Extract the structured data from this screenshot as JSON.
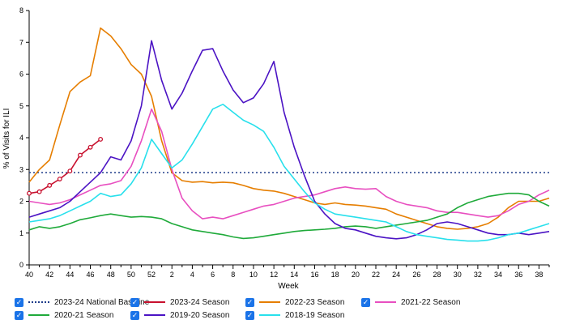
{
  "chart_data": {
    "type": "line",
    "xlabel": "Week",
    "ylabel": "% of Visits for ILI",
    "ylim": [
      0,
      8
    ],
    "yticks": [
      "0",
      "1",
      "2",
      "3",
      "4",
      "5",
      "6",
      "7",
      "8"
    ],
    "x_tick_labels": [
      "40",
      "42",
      "44",
      "46",
      "48",
      "50",
      "52",
      "2",
      "4",
      "6",
      "8",
      "10",
      "12",
      "14",
      "16",
      "18",
      "20",
      "22",
      "24",
      "26",
      "28",
      "30",
      "32",
      "34",
      "36",
      "38"
    ],
    "weeks": [
      40,
      41,
      42,
      43,
      44,
      45,
      46,
      47,
      48,
      49,
      50,
      51,
      52,
      1,
      2,
      3,
      4,
      5,
      6,
      7,
      8,
      9,
      10,
      11,
      12,
      13,
      14,
      15,
      16,
      17,
      18,
      19,
      20,
      21,
      22,
      23,
      24,
      25,
      26,
      27,
      28,
      29,
      30,
      31,
      32,
      33,
      34,
      35,
      36,
      37,
      38,
      39
    ],
    "baseline": {
      "name": "2023-24 National Baseline",
      "value": 2.9,
      "color": "#1f3d8a"
    },
    "series": [
      {
        "name": "2023-24 Season",
        "color": "#c8102e",
        "markers": true,
        "values": [
          2.25,
          2.3,
          2.5,
          2.7,
          2.95,
          3.45,
          3.7,
          3.95
        ]
      },
      {
        "name": "2022-23 Season",
        "color": "#e67e00",
        "values": [
          2.6,
          3.0,
          3.3,
          4.4,
          5.45,
          5.75,
          5.95,
          7.45,
          7.2,
          6.8,
          6.3,
          6.0,
          5.3,
          3.9,
          2.9,
          2.65,
          2.6,
          2.62,
          2.58,
          2.6,
          2.58,
          2.5,
          2.4,
          2.35,
          2.32,
          2.25,
          2.15,
          2.05,
          1.95,
          1.9,
          1.95,
          1.9,
          1.88,
          1.85,
          1.8,
          1.75,
          1.6,
          1.5,
          1.4,
          1.3,
          1.2,
          1.15,
          1.12,
          1.15,
          1.2,
          1.3,
          1.5,
          1.8,
          2.0,
          2.0,
          2.0,
          2.1
        ]
      },
      {
        "name": "2021-22 Season",
        "color": "#e84fc0",
        "values": [
          2.0,
          1.95,
          1.9,
          1.95,
          2.05,
          2.2,
          2.35,
          2.5,
          2.55,
          2.65,
          3.1,
          3.9,
          4.9,
          4.2,
          3.0,
          2.1,
          1.7,
          1.45,
          1.5,
          1.45,
          1.55,
          1.65,
          1.75,
          1.85,
          1.9,
          2.0,
          2.1,
          2.15,
          2.2,
          2.3,
          2.4,
          2.45,
          2.4,
          2.38,
          2.4,
          2.15,
          2.0,
          1.9,
          1.85,
          1.8,
          1.7,
          1.65,
          1.65,
          1.6,
          1.55,
          1.5,
          1.55,
          1.7,
          1.9,
          2.0,
          2.2,
          2.35
        ]
      },
      {
        "name": "2020-21 Season",
        "color": "#1faa3a",
        "values": [
          1.1,
          1.2,
          1.15,
          1.2,
          1.3,
          1.42,
          1.48,
          1.55,
          1.6,
          1.55,
          1.5,
          1.52,
          1.5,
          1.45,
          1.3,
          1.2,
          1.1,
          1.05,
          1.0,
          0.95,
          0.88,
          0.83,
          0.85,
          0.9,
          0.95,
          1.0,
          1.05,
          1.08,
          1.1,
          1.12,
          1.15,
          1.2,
          1.22,
          1.2,
          1.15,
          1.2,
          1.25,
          1.3,
          1.35,
          1.4,
          1.5,
          1.6,
          1.8,
          1.95,
          2.05,
          2.15,
          2.2,
          2.25,
          2.25,
          2.2,
          2.0,
          1.85
        ]
      },
      {
        "name": "2019-20 Season",
        "color": "#4b13c4",
        "values": [
          1.5,
          1.6,
          1.7,
          1.8,
          2.0,
          2.3,
          2.6,
          2.9,
          3.4,
          3.3,
          3.9,
          5.0,
          7.05,
          5.8,
          4.9,
          5.4,
          6.1,
          6.75,
          6.8,
          6.1,
          5.5,
          5.1,
          5.25,
          5.7,
          6.4,
          4.8,
          3.7,
          2.8,
          2.0,
          1.6,
          1.3,
          1.15,
          1.1,
          1.0,
          0.9,
          0.85,
          0.82,
          0.85,
          0.95,
          1.1,
          1.3,
          1.35,
          1.3,
          1.2,
          1.1,
          1.0,
          0.95,
          0.95,
          1.0,
          0.95,
          1.0,
          1.05
        ]
      },
      {
        "name": "2018-19 Season",
        "color": "#28e0ec",
        "values": [
          1.35,
          1.4,
          1.45,
          1.55,
          1.7,
          1.85,
          2.0,
          2.25,
          2.15,
          2.2,
          2.55,
          3.05,
          3.95,
          3.5,
          3.05,
          3.3,
          3.8,
          4.35,
          4.9,
          5.05,
          4.8,
          4.55,
          4.4,
          4.2,
          3.7,
          3.1,
          2.7,
          2.3,
          1.95,
          1.75,
          1.6,
          1.55,
          1.5,
          1.45,
          1.4,
          1.35,
          1.2,
          1.05,
          0.95,
          0.9,
          0.85,
          0.8,
          0.78,
          0.75,
          0.75,
          0.78,
          0.85,
          0.95,
          1.0,
          1.1,
          1.2,
          1.3
        ]
      }
    ]
  },
  "legend": [
    {
      "label": "2023-24 National Baseline",
      "color": "#1f3d8a",
      "style": "dotted",
      "checked": true
    },
    {
      "label": "2023-24 Season",
      "color": "#c8102e",
      "style": "solid",
      "checked": true
    },
    {
      "label": "2022-23 Season",
      "color": "#e67e00",
      "style": "solid",
      "checked": true
    },
    {
      "label": "2021-22 Season",
      "color": "#e84fc0",
      "style": "solid",
      "checked": true
    },
    {
      "label": "2020-21 Season",
      "color": "#1faa3a",
      "style": "solid",
      "checked": true
    },
    {
      "label": "2019-20 Season",
      "color": "#4b13c4",
      "style": "solid",
      "checked": true
    },
    {
      "label": "2018-19 Season",
      "color": "#28e0ec",
      "style": "solid",
      "checked": true
    }
  ]
}
